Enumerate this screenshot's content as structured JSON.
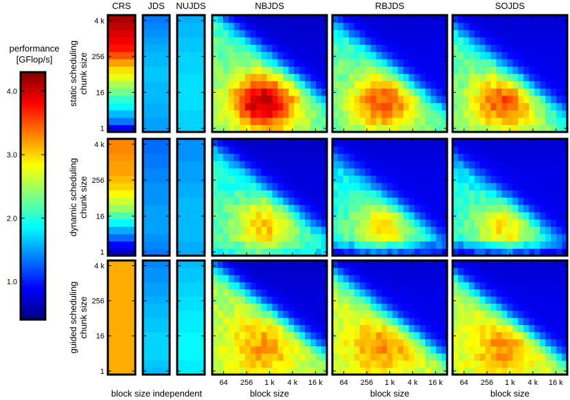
{
  "chart_data": {
    "type": "heatmap",
    "colorbar": {
      "label_line1": "performance",
      "label_line2": "[GFlop/s]",
      "ticks": [
        "1.0",
        "2.0",
        "3.0",
        "4.0"
      ],
      "tick_values": [
        1.0,
        2.0,
        3.0,
        4.0
      ],
      "range": [
        0.4,
        4.3
      ],
      "colormap": [
        "#00007f",
        "#0000ff",
        "#007fff",
        "#00ffff",
        "#7fff7f",
        "#ffff00",
        "#ff7f00",
        "#ff0000",
        "#7f0000"
      ]
    },
    "columns": [
      "CRS",
      "JDS",
      "NUJDS",
      "NBJDS",
      "RBJDS",
      "SOJDS"
    ],
    "rows": [
      {
        "line1": "static scheduling",
        "line2": "chunk size"
      },
      {
        "line1": "dynamic scheduling",
        "line2": "chunk size"
      },
      {
        "line1": "guided scheduling",
        "line2": "chunk size"
      }
    ],
    "y_ticks": [
      "1",
      "16",
      "256",
      "4 k"
    ],
    "y_tick_values": [
      1,
      16,
      256,
      4096
    ],
    "x_ticks": [
      "64",
      "256",
      "1 k",
      "4 k",
      "16 k"
    ],
    "x_tick_values": [
      64,
      256,
      1024,
      4096,
      16384
    ],
    "xlabel_independent": "block size independent",
    "xlabel": "block size",
    "chunk_range": [
      1,
      8192
    ],
    "block_range": [
      32,
      32768
    ],
    "block_independent": {
      "CRS": [
        [
          0.85,
          1.35,
          1.6,
          1.85,
          2.05,
          2.3,
          2.5,
          2.75,
          2.95,
          3.2,
          3.5,
          3.75,
          3.85,
          3.95,
          4.05,
          4.15
        ],
        [
          0.7,
          0.9,
          1.3,
          1.55,
          1.85,
          2.15,
          2.45,
          2.65,
          2.85,
          3.0,
          3.1,
          3.2,
          3.2,
          3.25,
          3.3,
          3.3
        ],
        [
          3.15,
          3.15,
          3.15,
          3.15,
          3.15,
          3.15,
          3.15,
          3.15,
          3.15,
          3.15,
          3.15,
          3.15,
          3.15,
          3.15,
          3.15,
          3.15
        ]
      ],
      "JDS": [
        [
          1.5,
          1.5,
          1.55,
          1.55,
          1.6,
          1.6,
          1.6,
          1.65,
          1.65,
          1.6,
          1.6,
          1.55,
          1.5,
          1.45,
          1.4,
          1.35
        ],
        [
          1.35,
          1.4,
          1.45,
          1.5,
          1.5,
          1.5,
          1.5,
          1.45,
          1.45,
          1.45,
          1.4,
          1.4,
          1.35,
          1.35,
          1.3,
          1.3
        ],
        [
          1.6,
          1.65,
          1.7,
          1.7,
          1.7,
          1.7,
          1.65,
          1.65,
          1.6,
          1.6,
          1.55,
          1.5,
          1.5,
          1.45,
          1.45,
          1.4
        ]
      ],
      "NUJDS": [
        [
          1.7,
          1.7,
          1.7,
          1.75,
          1.75,
          1.75,
          1.75,
          1.75,
          1.7,
          1.7,
          1.7,
          1.65,
          1.65,
          1.6,
          1.6,
          1.55
        ],
        [
          1.55,
          1.55,
          1.6,
          1.6,
          1.6,
          1.6,
          1.6,
          1.6,
          1.55,
          1.55,
          1.5,
          1.5,
          1.5,
          1.45,
          1.45,
          1.45
        ],
        [
          1.8,
          1.8,
          1.85,
          1.85,
          1.85,
          1.85,
          1.8,
          1.8,
          1.8,
          1.75,
          1.75,
          1.7,
          1.7,
          1.65,
          1.65,
          1.6
        ]
      ]
    },
    "block_dependent_model": {
      "NBJDS": [
        {
          "peak": 4.1,
          "base": 2.25,
          "cutoff_log2_sum": 18.5,
          "edge_width": 0.7,
          "floor": 0.75,
          "low_chunk_penalty": 0.0
        },
        {
          "peak": 3.05,
          "base": 2.0,
          "cutoff_log2_sum": 17.5,
          "edge_width": 0.7,
          "floor": 0.75,
          "low_chunk_penalty": 0.25
        },
        {
          "peak": 3.2,
          "base": 2.55,
          "cutoff_log2_sum": 17.5,
          "edge_width": 0.7,
          "floor": 0.75,
          "low_chunk_penalty": 0.0
        }
      ],
      "RBJDS": [
        {
          "peak": 3.5,
          "base": 2.2,
          "cutoff_log2_sum": 17.5,
          "edge_width": 0.7,
          "floor": 0.8,
          "low_chunk_penalty": 0.0
        },
        {
          "peak": 2.95,
          "base": 1.9,
          "cutoff_log2_sum": 16.5,
          "edge_width": 0.7,
          "floor": 0.8,
          "low_chunk_penalty": 1.0
        },
        {
          "peak": 3.25,
          "base": 2.6,
          "cutoff_log2_sum": 16.8,
          "edge_width": 0.7,
          "floor": 0.8,
          "low_chunk_penalty": 0.0
        }
      ],
      "SOJDS": [
        {
          "peak": 3.5,
          "base": 2.2,
          "cutoff_log2_sum": 17.0,
          "edge_width": 0.7,
          "floor": 0.8,
          "low_chunk_penalty": 0.0
        },
        {
          "peak": 2.95,
          "base": 1.9,
          "cutoff_log2_sum": 16.3,
          "edge_width": 0.7,
          "floor": 0.8,
          "low_chunk_penalty": 1.0
        },
        {
          "peak": 3.25,
          "base": 2.6,
          "cutoff_log2_sum": 16.5,
          "edge_width": 0.7,
          "floor": 0.8,
          "low_chunk_penalty": 0.0
        }
      ]
    }
  }
}
